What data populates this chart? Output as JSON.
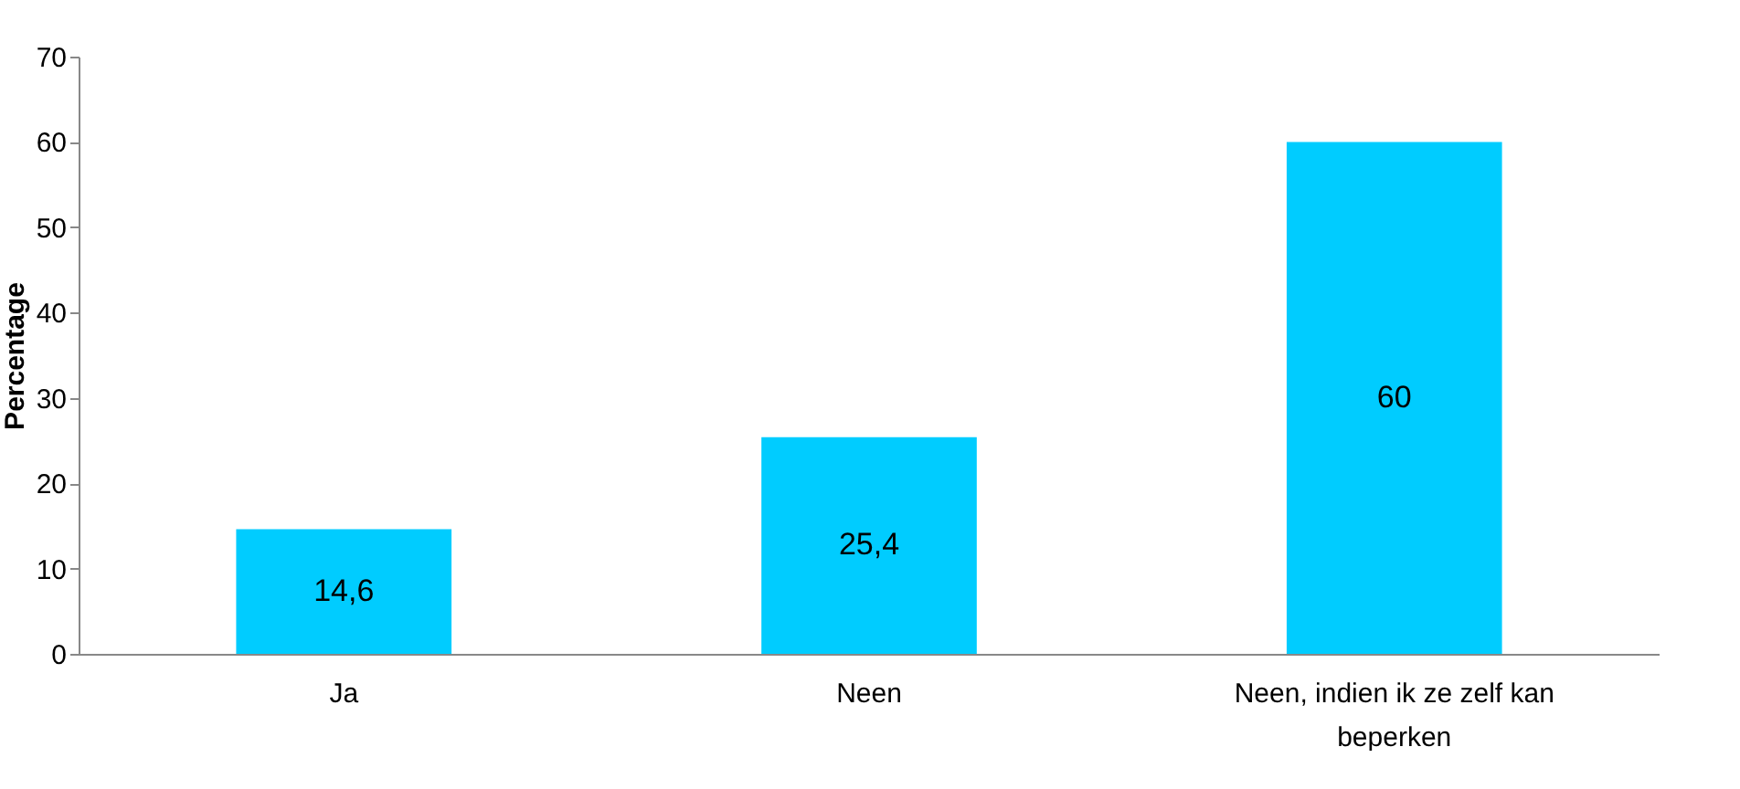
{
  "chart_data": {
    "type": "bar",
    "ylabel": "Percentage",
    "categories": [
      "Ja",
      "Neen",
      "Neen, indien ik ze zelf kan beperken"
    ],
    "values": [
      14.6,
      25.4,
      60
    ],
    "color": "#00ccff",
    "value_labels": [
      "14,6",
      "25,4",
      "60"
    ],
    "ylim": [
      0,
      70
    ],
    "yticks": [
      0,
      10,
      20,
      30,
      40,
      50,
      60,
      70
    ],
    "grid": false
  }
}
